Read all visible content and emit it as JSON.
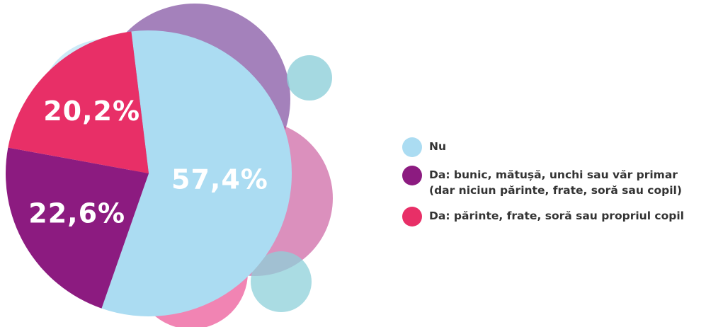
{
  "chart_data": {
    "type": "pie",
    "categories": [
      "Nu",
      "Da: bunic, mătușă, unchi sau văr primar\n(dar niciun părinte, frate, soră sau copil)",
      "Da: părinte, frate, soră sau propriul copil"
    ],
    "values": [
      57.4,
      22.6,
      20.2
    ],
    "value_labels": [
      "57,4%",
      "22,6%",
      "20,2%"
    ],
    "colors": [
      "#abdcf2",
      "#8c1b80",
      "#e82f67"
    ],
    "legend": "right"
  }
}
